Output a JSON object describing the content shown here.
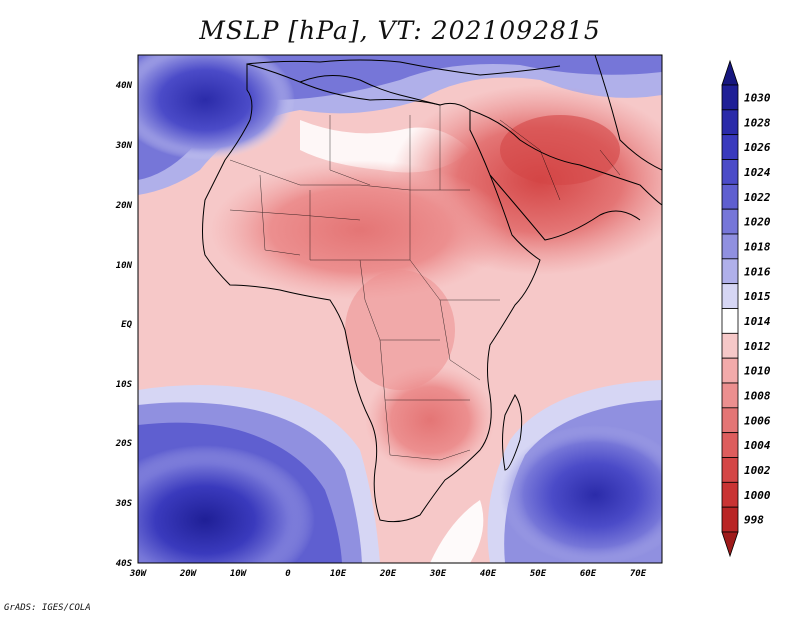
{
  "title": "MSLP [hPa], VT: 2021092815",
  "credit": "GrADS: IGES/COLA",
  "map": {
    "lat_labels": [
      "40N",
      "30N",
      "20N",
      "10N",
      "EQ",
      "10S",
      "20S",
      "30S",
      "40S"
    ],
    "lon_labels": [
      "30W",
      "20W",
      "10W",
      "0",
      "10E",
      "20E",
      "30E",
      "40E",
      "50E",
      "60E",
      "70E"
    ],
    "lon_range": [
      -30,
      75
    ],
    "lat_range": [
      -40,
      45
    ]
  },
  "colorbar": {
    "levels": [
      "1030",
      "1028",
      "1026",
      "1024",
      "1022",
      "1020",
      "1018",
      "1016",
      "1015",
      "1014",
      "1012",
      "1010",
      "1008",
      "1006",
      "1004",
      "1002",
      "1000",
      "998"
    ],
    "colors": [
      "#1f1f96",
      "#2b2ba9",
      "#3a3abd",
      "#4b4bc8",
      "#5f5fd0",
      "#7676d8",
      "#9090e0",
      "#b0b0ea",
      "#d6d6f4",
      "#ffffff",
      "#f6c8c8",
      "#f2aaaa",
      "#ec8f8f",
      "#e47575",
      "#dd5d5d",
      "#d44646",
      "#c93333",
      "#b92525"
    ],
    "top_color": "#17177f",
    "bottom_color": "#9e1a1a"
  }
}
